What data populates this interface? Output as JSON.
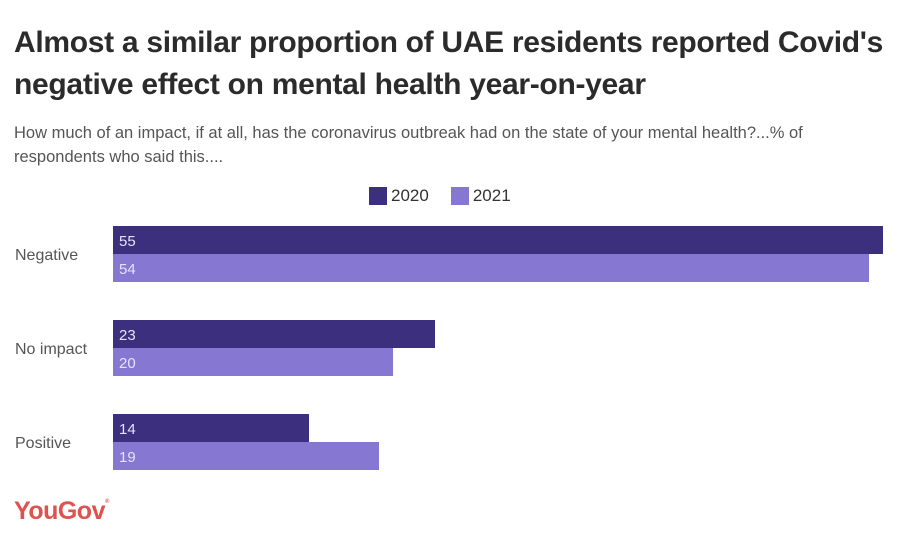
{
  "chart_data": {
    "type": "bar",
    "orientation": "horizontal",
    "title": "Almost a similar proportion of UAE residents reported Covid's negative effect on mental health year-on-year",
    "subtitle": "How much of an impact, if at all, has the coronavirus outbreak had on the state of your mental health?...% of respondents who said this....",
    "categories": [
      "Negative",
      "No impact",
      "Positive"
    ],
    "series": [
      {
        "name": "2020",
        "color": "#3b2f7e",
        "values": [
          55,
          23,
          14
        ]
      },
      {
        "name": "2021",
        "color": "#8678d2",
        "values": [
          54,
          20,
          19
        ]
      }
    ],
    "xlabel": "",
    "ylabel": "",
    "xlim": [
      0,
      55
    ],
    "grid": false,
    "legend": "top-center",
    "data_labels": true
  },
  "brand": {
    "logo_text": "YouGov",
    "color": "#e0524f"
  }
}
